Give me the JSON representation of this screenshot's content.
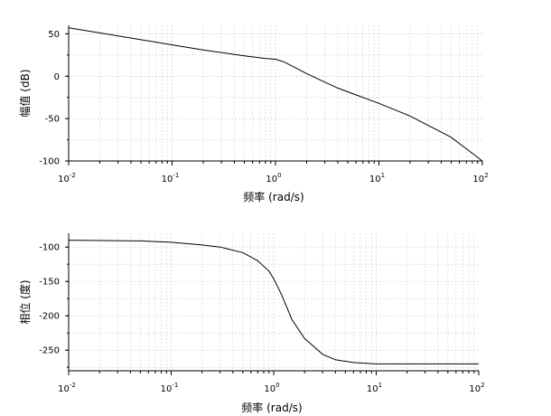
{
  "chart_data": [
    {
      "type": "line",
      "xscale": "log",
      "xlim": [
        0.01,
        100
      ],
      "ylim": [
        -100,
        60
      ],
      "xlabel": "频率 (rad/s)",
      "ylabel": "幅值 (dB)",
      "xticks": [
        {
          "base": "10",
          "exp": "-2"
        },
        {
          "base": "10",
          "exp": "-1"
        },
        {
          "base": "10",
          "exp": "0"
        },
        {
          "base": "10",
          "exp": "1"
        },
        {
          "base": "10",
          "exp": "2"
        }
      ],
      "yticks": [
        "50",
        "0",
        "-50",
        "-100"
      ],
      "yticks_values": [
        50,
        0,
        -50,
        -100
      ],
      "grid": true,
      "color": "#000000",
      "x": [
        0.01,
        0.02,
        0.05,
        0.1,
        0.2,
        0.5,
        0.8,
        1.0,
        1.2,
        1.5,
        2.0,
        3.0,
        4.0,
        6.0,
        10,
        20,
        50,
        100
      ],
      "y": [
        57,
        51,
        43,
        37,
        31,
        24,
        21,
        20,
        17,
        11,
        3,
        -7,
        -14,
        -22,
        -32,
        -47,
        -72,
        -100
      ]
    },
    {
      "type": "line",
      "xscale": "log",
      "xlim": [
        0.01,
        100
      ],
      "ylim": [
        -280,
        -80
      ],
      "xlabel": "频率 (rad/s)",
      "ylabel": "相位 (度)",
      "xticks": [
        {
          "base": "10",
          "exp": "-2"
        },
        {
          "base": "10",
          "exp": "-1"
        },
        {
          "base": "10",
          "exp": "0"
        },
        {
          "base": "10",
          "exp": "1"
        },
        {
          "base": "10",
          "exp": "2"
        }
      ],
      "yticks": [
        "-100",
        "-150",
        "-200",
        "-250"
      ],
      "yticks_values": [
        -100,
        -150,
        -200,
        -250
      ],
      "grid": true,
      "color": "#000000",
      "x": [
        0.01,
        0.05,
        0.1,
        0.2,
        0.3,
        0.5,
        0.7,
        0.9,
        1.0,
        1.2,
        1.5,
        2.0,
        3.0,
        4.0,
        6.0,
        10,
        100
      ],
      "y": [
        -90,
        -91,
        -93,
        -97,
        -100,
        -108,
        -120,
        -135,
        -146,
        -170,
        -205,
        -233,
        -256,
        -264,
        -268,
        -270,
        -270
      ]
    }
  ]
}
